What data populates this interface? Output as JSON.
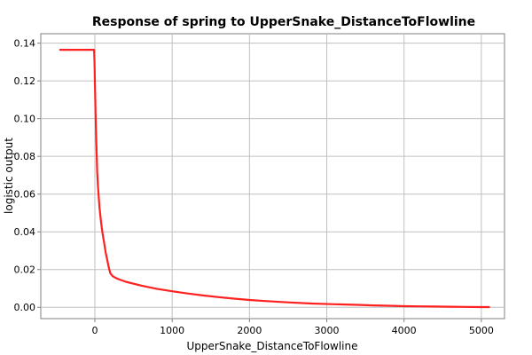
{
  "chart_data": {
    "type": "line",
    "title": "Response of spring to UpperSnake_DistanceToFlowline",
    "xlabel": "UpperSnake_DistanceToFlowline",
    "ylabel": "logistic output",
    "xlim": [
      -700,
      5300
    ],
    "ylim": [
      -0.006,
      0.145
    ],
    "xticks": [
      0,
      1000,
      2000,
      3000,
      4000,
      5000
    ],
    "yticks": [
      0.0,
      0.02,
      0.04,
      0.06,
      0.08,
      0.1,
      0.12,
      0.14
    ],
    "ytick_labels": [
      "0.00",
      "0.02",
      "0.04",
      "0.06",
      "0.08",
      "0.10",
      "0.12",
      "0.14"
    ],
    "grid": true,
    "series": [
      {
        "color": "#ff2020",
        "x": [
          -450,
          -10,
          -5,
          0,
          10,
          20,
          30,
          40,
          50,
          60,
          80,
          100,
          120,
          140,
          160,
          180,
          200,
          230,
          260,
          300,
          400,
          600,
          800,
          1000,
          1200,
          1400,
          1600,
          1800,
          2000,
          2200,
          2500,
          2800,
          3100,
          3400,
          3600,
          3800,
          4000,
          4200,
          4400,
          4600,
          4800,
          5000,
          5100
        ],
        "y": [
          0.1365,
          0.1365,
          0.13,
          0.12,
          0.1,
          0.085,
          0.072,
          0.064,
          0.058,
          0.053,
          0.045,
          0.039,
          0.034,
          0.029,
          0.025,
          0.021,
          0.018,
          0.0165,
          0.0158,
          0.015,
          0.0135,
          0.0115,
          0.0098,
          0.0085,
          0.0073,
          0.0063,
          0.0054,
          0.0046,
          0.0039,
          0.0033,
          0.0026,
          0.002,
          0.0016,
          0.0013,
          0.001,
          0.0008,
          0.0006,
          0.0005,
          0.0004,
          0.0003,
          0.0002,
          0.0001,
          0.0001
        ]
      }
    ]
  }
}
